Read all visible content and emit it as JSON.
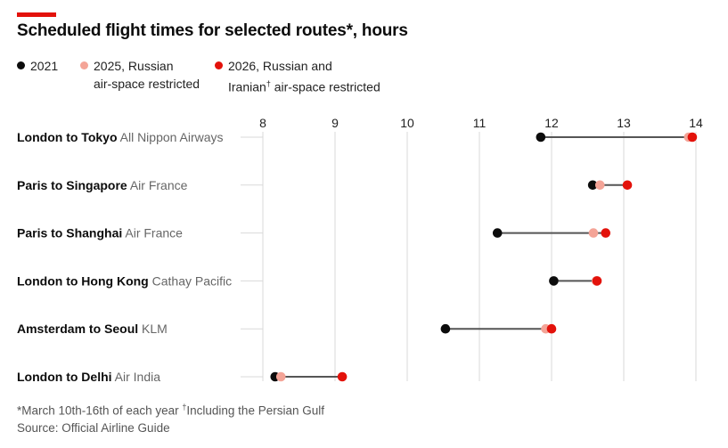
{
  "title": "Scheduled flight times for selected routes*, hours",
  "legend": [
    {
      "label": "2021",
      "color": "#0c0c0c"
    },
    {
      "label": "2025, Russian\nair-space restricted",
      "color": "#f4a497"
    },
    {
      "label": "2026, Russian and\nIranian† air-space restricted",
      "color": "#e3120b"
    }
  ],
  "chart_data": {
    "type": "dot",
    "title": "Scheduled flight times for selected routes*, hours",
    "xlabel": "",
    "ylabel": "",
    "xlim": [
      8,
      14
    ],
    "xticks": [
      "8",
      "9",
      "10",
      "11",
      "12",
      "13",
      "14"
    ],
    "grid": "vertical",
    "legend_position": "top-left",
    "series_names": [
      "2021",
      "2025, Russian air-space restricted",
      "2026, Russian and Iranian† air-space restricted"
    ],
    "rows": [
      {
        "route": "London to Tokyo",
        "airline": "All Nippon Airways",
        "y2021": 11.85,
        "y2025": 13.9,
        "y2026": 13.95
      },
      {
        "route": "Paris to Singapore",
        "airline": "Air France",
        "y2021": 12.57,
        "y2025": 12.67,
        "y2026": 13.05
      },
      {
        "route": "Paris to Shanghai",
        "airline": "Air France",
        "y2021": 11.25,
        "y2025": 12.58,
        "y2026": 12.75
      },
      {
        "route": "London to Hong Kong",
        "airline": "Cathay Pacific",
        "y2021": 12.03,
        "y2025": 12.62,
        "y2026": 12.63
      },
      {
        "route": "Amsterdam to Seoul",
        "airline": "KLM",
        "y2021": 10.53,
        "y2025": 11.92,
        "y2026": 12.0
      },
      {
        "route": "London to Delhi",
        "airline": "Air India",
        "y2021": 8.17,
        "y2025": 8.25,
        "y2026": 9.1
      }
    ]
  },
  "footnote": "*March 10th-16th of each year",
  "footnote2": "Including the Persian Gulf",
  "footnote2_mark": "†",
  "source": "Source: Official Airline Guide",
  "colors": {
    "y2021": "#0c0c0c",
    "y2025": "#f4a497",
    "y2026": "#e3120b",
    "connector": "#555555",
    "grid": "#d9d9d9"
  }
}
